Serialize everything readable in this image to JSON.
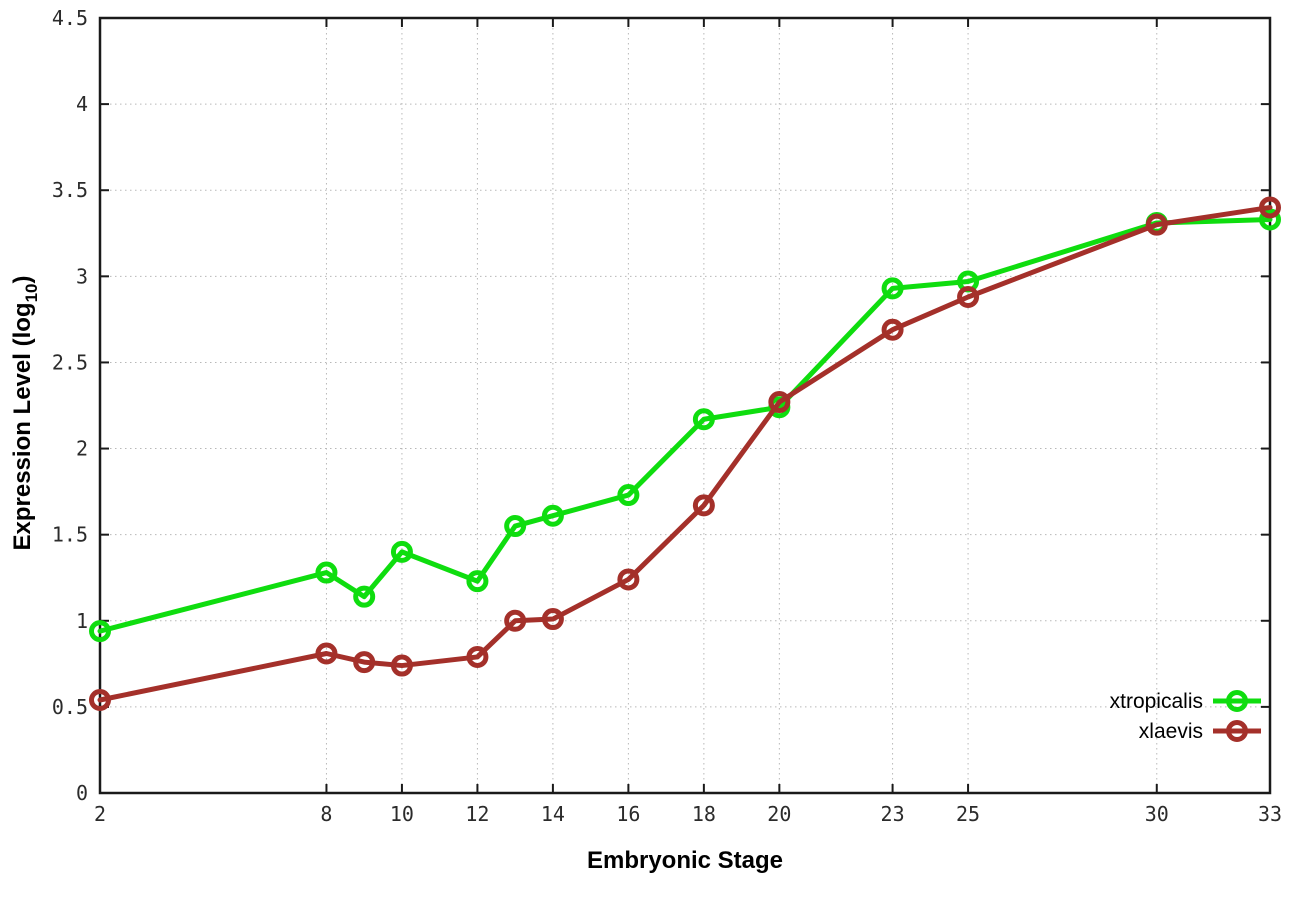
{
  "chart_data": {
    "type": "line",
    "title": "",
    "xlabel": "Embryonic Stage",
    "ylabel": "Expression Level (log10)",
    "ylabel_parts": {
      "main": "Expression Level (log",
      "sub": "10",
      "suffix": ")"
    },
    "xlim": [
      2,
      33
    ],
    "ylim": [
      0,
      4.5
    ],
    "x_tick_values": [
      2,
      8,
      10,
      12,
      14,
      16,
      18,
      20,
      23,
      25,
      30,
      33
    ],
    "x_tick_labels": [
      "2",
      "8",
      "10",
      "12",
      "14",
      "16",
      "18",
      "20",
      "23",
      "25",
      "30",
      "33"
    ],
    "y_tick_values": [
      0,
      0.5,
      1,
      1.5,
      2,
      2.5,
      3,
      3.5,
      4,
      4.5
    ],
    "y_tick_labels": [
      "0",
      "0.5",
      "1",
      "1.5",
      "2",
      "2.5",
      "3",
      "3.5",
      "4",
      "4.5"
    ],
    "grid": true,
    "legend_position": "inside-bottom-right",
    "x": [
      2,
      8,
      9,
      10,
      12,
      13,
      14,
      16,
      18,
      20,
      23,
      25,
      30,
      33
    ],
    "series": [
      {
        "name": "xtropicalis",
        "color": "#0fdd0f",
        "values": [
          0.94,
          1.28,
          1.14,
          1.4,
          1.23,
          1.55,
          1.61,
          1.73,
          2.17,
          2.24,
          2.93,
          2.97,
          3.31,
          3.33
        ]
      },
      {
        "name": "xlaevis",
        "color": "#a4302a",
        "values": [
          0.54,
          0.81,
          0.76,
          0.74,
          0.79,
          1.0,
          1.01,
          1.24,
          1.67,
          2.27,
          2.69,
          2.88,
          3.3,
          3.4
        ]
      }
    ],
    "colors": {
      "grid": "#b8b8b8",
      "axis": "#1a1a1a",
      "tick_label": "#2b2b2b",
      "text": "#000000",
      "background": "#ffffff"
    }
  }
}
